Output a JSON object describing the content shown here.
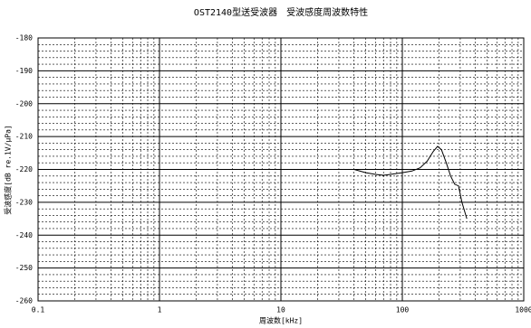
{
  "chart_data": {
    "type": "line",
    "title": "OST2140型送受波器　受波感度周波数特性",
    "xlabel": "周波数[kHz]",
    "ylabel": "受波感度[dB re.1V/μPa]",
    "xscale": "log",
    "xlim": [
      0.1,
      1000
    ],
    "xticks": [
      0.1,
      1,
      10,
      100,
      1000
    ],
    "ylim": [
      -260,
      -180
    ],
    "yticks": [
      -260,
      -250,
      -240,
      -230,
      -220,
      -210,
      -200,
      -190,
      -180
    ],
    "grid": true,
    "series": [
      {
        "name": "受波感度",
        "color": "#000000",
        "x": [
          40,
          50,
          60,
          70,
          80,
          100,
          120,
          140,
          160,
          180,
          195,
          210,
          230,
          250,
          270,
          290,
          310,
          340
        ],
        "values": [
          -220,
          -221,
          -221.5,
          -221.8,
          -221.5,
          -221,
          -220.5,
          -219.5,
          -217.5,
          -214.5,
          -213,
          -214,
          -218,
          -222,
          -224.5,
          -225,
          -230,
          -235
        ]
      }
    ]
  }
}
